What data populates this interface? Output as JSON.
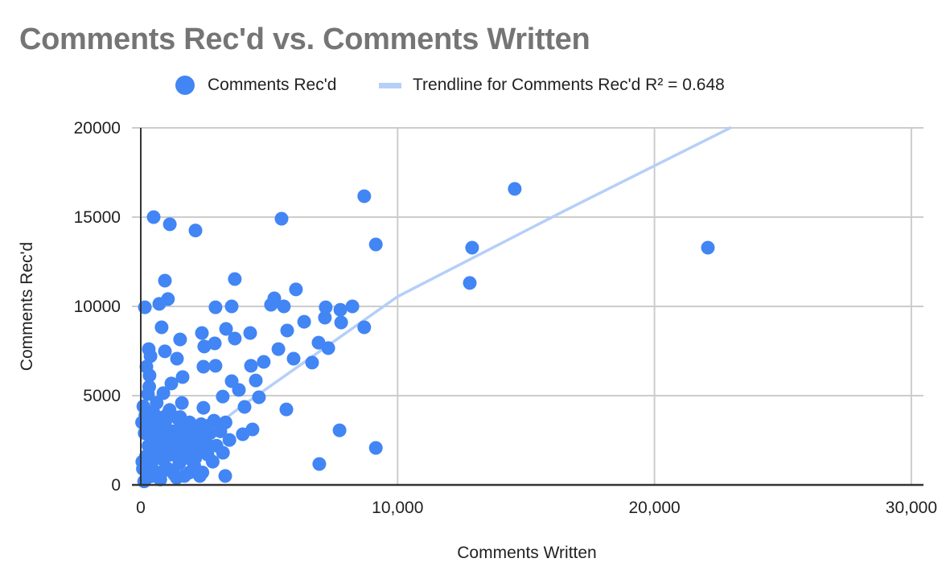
{
  "chart": {
    "title": "Comments Rec'd vs. Comments Written",
    "legend": {
      "series_label": "Comments Rec'd",
      "trend_label": "Trendline for Comments Rec'd R² = 0.648"
    },
    "x_axis_title": "Comments Written",
    "y_axis_title": "Comments Rec'd",
    "colors": {
      "point": "#4285f4",
      "trendline": "#b5cff8",
      "grid": "#cccccc",
      "axis": "#333333",
      "title": "#757575"
    }
  },
  "chart_data": {
    "type": "scatter",
    "title": "Comments Rec'd vs. Comments Written",
    "xlabel": "Comments Written",
    "ylabel": "Comments Rec'd",
    "xlim": [
      0,
      30500
    ],
    "ylim": [
      0,
      20000
    ],
    "x_ticks": [
      "0",
      "10,000",
      "20,000",
      "30,000"
    ],
    "y_ticks": [
      "0",
      "5000",
      "10000",
      "15000",
      "20000"
    ],
    "grid": true,
    "legend_position": "top",
    "series": [
      {
        "name": "Comments Rec'd",
        "points": [
          [
            500,
            15000
          ],
          [
            1130,
            14600
          ],
          [
            2130,
            14250
          ],
          [
            8700,
            16170
          ],
          [
            14560,
            16580
          ],
          [
            5480,
            14910
          ],
          [
            9150,
            13470
          ],
          [
            12900,
            13290
          ],
          [
            22080,
            13290
          ],
          [
            12810,
            11310
          ],
          [
            940,
            11440
          ],
          [
            3660,
            11530
          ],
          [
            160,
            9950
          ],
          [
            720,
            10140
          ],
          [
            1060,
            10410
          ],
          [
            2910,
            9950
          ],
          [
            3540,
            10000
          ],
          [
            5070,
            10090
          ],
          [
            5200,
            10450
          ],
          [
            5570,
            10000
          ],
          [
            6040,
            10950
          ],
          [
            7200,
            9950
          ],
          [
            7770,
            9810
          ],
          [
            8240,
            10000
          ],
          [
            7170,
            9370
          ],
          [
            7800,
            9100
          ],
          [
            8700,
            8830
          ],
          [
            6360,
            9140
          ],
          [
            810,
            8830
          ],
          [
            1530,
            8150
          ],
          [
            2380,
            8510
          ],
          [
            3320,
            8740
          ],
          [
            4260,
            8510
          ],
          [
            5700,
            8650
          ],
          [
            3660,
            8200
          ],
          [
            310,
            7610
          ],
          [
            380,
            7210
          ],
          [
            940,
            7480
          ],
          [
            1410,
            7070
          ],
          [
            2470,
            7750
          ],
          [
            2880,
            7930
          ],
          [
            5360,
            7610
          ],
          [
            6920,
            7970
          ],
          [
            7300,
            7660
          ],
          [
            5950,
            7070
          ],
          [
            6670,
            6850
          ],
          [
            4790,
            6890
          ],
          [
            4290,
            6670
          ],
          [
            2910,
            6670
          ],
          [
            2440,
            6620
          ],
          [
            220,
            6620
          ],
          [
            340,
            6130
          ],
          [
            1190,
            5680
          ],
          [
            1630,
            6040
          ],
          [
            3540,
            5810
          ],
          [
            4480,
            5850
          ],
          [
            3820,
            5320
          ],
          [
            280,
            5090
          ],
          [
            880,
            5140
          ],
          [
            1600,
            4590
          ],
          [
            4600,
            4910
          ],
          [
            5670,
            4230
          ],
          [
            2440,
            4320
          ],
          [
            3190,
            4950
          ],
          [
            4040,
            4370
          ],
          [
            4350,
            3110
          ],
          [
            3970,
            2840
          ],
          [
            3450,
            2520
          ],
          [
            7740,
            3060
          ],
          [
            9150,
            2070
          ],
          [
            6950,
            1170
          ],
          [
            3290,
            500
          ],
          [
            50,
            3500
          ],
          [
            100,
            4400
          ],
          [
            150,
            2900
          ],
          [
            200,
            1600
          ],
          [
            80,
            900
          ],
          [
            250,
            400
          ],
          [
            300,
            2200
          ],
          [
            350,
            3300
          ],
          [
            420,
            1200
          ],
          [
            480,
            4100
          ],
          [
            520,
            2600
          ],
          [
            600,
            700
          ],
          [
            650,
            3800
          ],
          [
            700,
            1900
          ],
          [
            760,
            300
          ],
          [
            820,
            2900
          ],
          [
            880,
            1400
          ],
          [
            950,
            3500
          ],
          [
            1000,
            2300
          ],
          [
            1050,
            900
          ],
          [
            1120,
            4200
          ],
          [
            1180,
            1700
          ],
          [
            1250,
            3000
          ],
          [
            1300,
            600
          ],
          [
            1380,
            2500
          ],
          [
            1450,
            3700
          ],
          [
            1500,
            1200
          ],
          [
            1580,
            2000
          ],
          [
            1650,
            3300
          ],
          [
            1700,
            500
          ],
          [
            1780,
            2800
          ],
          [
            1850,
            1500
          ],
          [
            1920,
            2300
          ],
          [
            2000,
            3000
          ],
          [
            2080,
            1100
          ],
          [
            2150,
            2600
          ],
          [
            2250,
            1900
          ],
          [
            2350,
            3400
          ],
          [
            2400,
            700
          ],
          [
            2500,
            2400
          ],
          [
            2600,
            1700
          ],
          [
            2700,
            2900
          ],
          [
            2800,
            1300
          ],
          [
            2950,
            2200
          ],
          [
            3100,
            3000
          ],
          [
            3200,
            1800
          ],
          [
            3300,
            3500
          ],
          [
            130,
            200
          ],
          [
            60,
            1300
          ],
          [
            400,
            2700
          ],
          [
            560,
            1600
          ],
          [
            620,
            4600
          ],
          [
            720,
            3200
          ],
          [
            850,
            2100
          ],
          [
            1100,
            2700
          ],
          [
            1200,
            3900
          ],
          [
            1350,
            1900
          ],
          [
            1600,
            2600
          ],
          [
            1750,
            1600
          ],
          [
            1900,
            3500
          ],
          [
            2050,
            2000
          ],
          [
            2200,
            3200
          ],
          [
            2450,
            2800
          ],
          [
            2650,
            2200
          ],
          [
            2850,
            3600
          ],
          [
            450,
            500
          ],
          [
            900,
            800
          ],
          [
            1400,
            400
          ],
          [
            1900,
            700
          ],
          [
            2300,
            500
          ],
          [
            180,
            3900
          ],
          [
            330,
            5500
          ],
          [
            560,
            3100
          ],
          [
            760,
            2400
          ],
          [
            1010,
            3900
          ],
          [
            1280,
            2200
          ],
          [
            1530,
            3800
          ],
          [
            1820,
            2400
          ],
          [
            2120,
            1500
          ],
          [
            2580,
            3300
          ]
        ]
      }
    ],
    "trendline": {
      "name": "Trendline for Comments Rec'd",
      "r_squared": 0.648,
      "points": [
        [
          0,
          100
        ],
        [
          3900,
          4380
        ],
        [
          10000,
          10550
        ],
        [
          16450,
          15320
        ],
        [
          22950,
          20000
        ]
      ]
    }
  }
}
